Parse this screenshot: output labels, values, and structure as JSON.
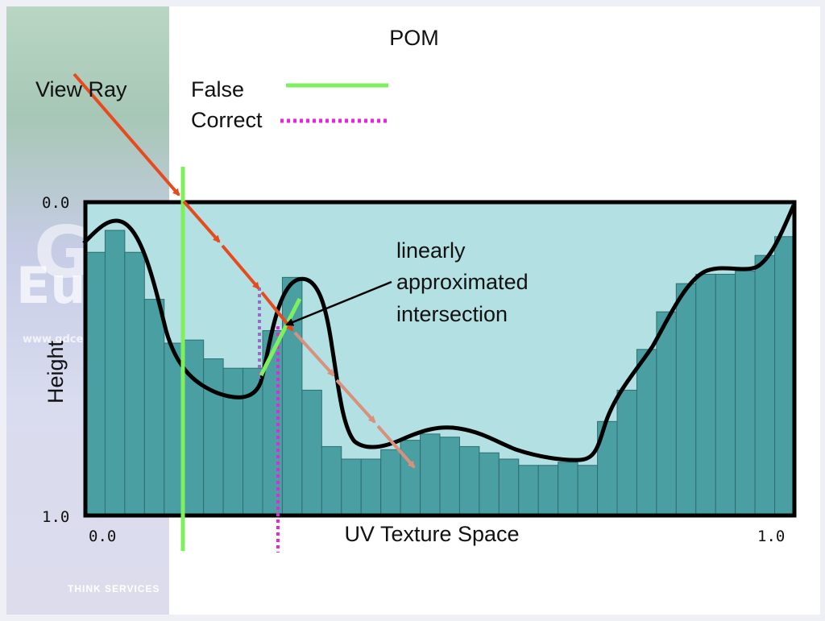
{
  "slide": {
    "title": "POM",
    "watermark": {
      "line1": "GDC",
      "line2": "Europe",
      "url": "www.gdceurope.com"
    },
    "logo": "THINK SERVICES"
  },
  "legend": {
    "view_ray": "View Ray",
    "false_label": "False",
    "correct_label": "Correct",
    "false_color": "#7ef05e",
    "correct_color": "#ee22dd",
    "view_ray_color": "#e84a1e"
  },
  "axes": {
    "y_label": "Height",
    "x_label": "UV Texture Space",
    "y_top_tick": "0.0",
    "y_bottom_tick": "1.0",
    "x_left_tick": "0.0",
    "x_right_tick": "1.0"
  },
  "annotation": {
    "lines": [
      "linearly",
      "approximated",
      "intersection"
    ]
  },
  "heightfield": {
    "description_color_fill": "#4a9fa2",
    "region_color": "#b3e1e3",
    "bar_heights": [
      0.16,
      0.09,
      0.16,
      0.31,
      0.45,
      0.44,
      0.5,
      0.53,
      0.53,
      0.41,
      0.24,
      0.6,
      0.78,
      0.82,
      0.82,
      0.79,
      0.76,
      0.74,
      0.75,
      0.78,
      0.8,
      0.82,
      0.84,
      0.84,
      0.83,
      0.84,
      0.7,
      0.6,
      0.47,
      0.35,
      0.26,
      0.23,
      0.23,
      0.22,
      0.17,
      0.11
    ]
  }
}
